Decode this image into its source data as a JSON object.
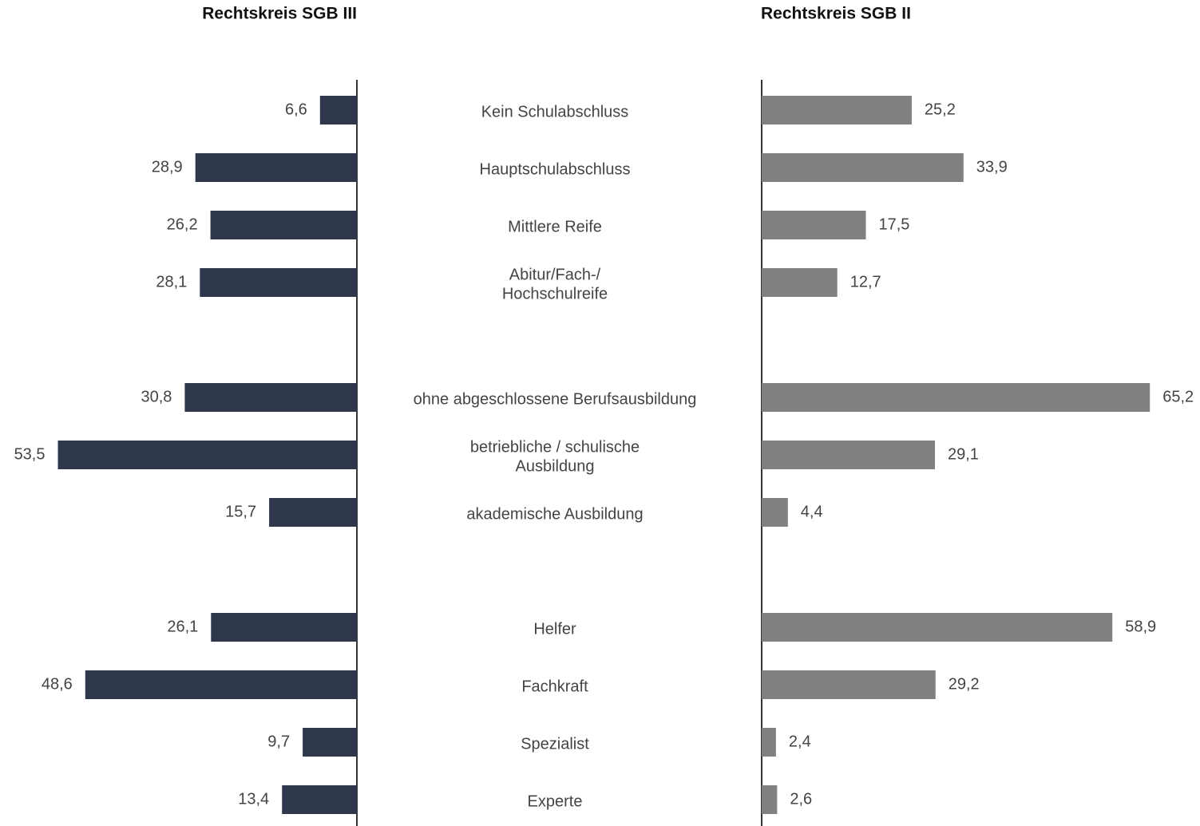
{
  "chart_data": [
    {
      "type": "bar",
      "orientation": "horizontal",
      "direction": "left",
      "title": "Rechtskreis SGB III",
      "color": "#2e374c",
      "categories": [
        [
          "Kein Schulabschluss"
        ],
        [
          "Hauptschulabschluss"
        ],
        [
          "Mittlere Reife"
        ],
        [
          "Abitur/Fach-/",
          "Hochschulreife"
        ],
        null,
        [
          "ohne abgeschlossene Berufsausbildung"
        ],
        [
          "betriebliche / schulische",
          "Ausbildung"
        ],
        [
          "akademische Ausbildung"
        ],
        null,
        [
          "Helfer"
        ],
        [
          "Fachkraft"
        ],
        [
          "Spezialist"
        ],
        [
          "Experte"
        ]
      ],
      "values": [
        6.6,
        28.9,
        26.2,
        28.1,
        null,
        30.8,
        53.5,
        15.7,
        null,
        26.1,
        48.6,
        9.7,
        13.4
      ],
      "value_labels": [
        "6,6",
        "28,9",
        "26,2",
        "28,1",
        null,
        "30,8",
        "53,5",
        "15,7",
        null,
        "26,1",
        "48,6",
        "9,7",
        "13,4"
      ],
      "xlim": [
        0,
        60
      ]
    },
    {
      "type": "bar",
      "orientation": "horizontal",
      "direction": "right",
      "title": "Rechtskreis SGB II",
      "color": "#808080",
      "values": [
        25.2,
        33.9,
        17.5,
        12.7,
        null,
        65.2,
        29.1,
        4.4,
        null,
        58.9,
        29.2,
        2.4,
        2.6
      ],
      "value_labels": [
        "25,2",
        "33,9",
        "17,5",
        "12,7",
        null,
        "65,2",
        "29,1",
        "4,4",
        null,
        "58,9",
        "29,2",
        "2,4",
        "2,6"
      ],
      "xlim": [
        0,
        70
      ]
    }
  ]
}
